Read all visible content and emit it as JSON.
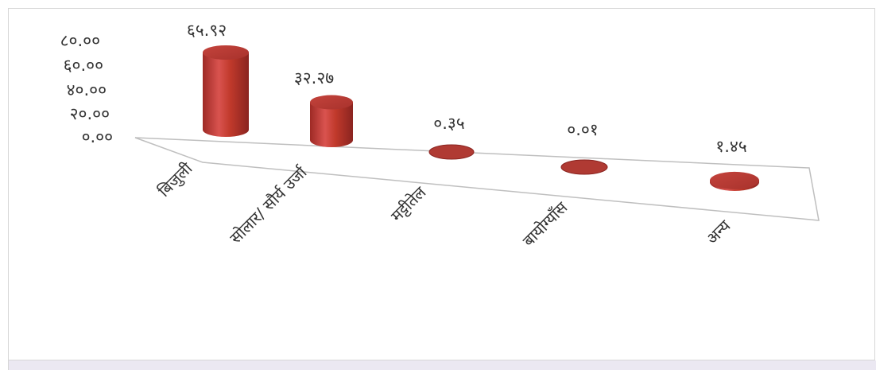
{
  "chart_data": {
    "type": "bar",
    "style": "3d-cylinder",
    "categories": [
      "बिजुली",
      "सोलार/ सौर्य उर्जा",
      "मट्टीतेल",
      "बायोग्याँस",
      "अन्य"
    ],
    "values": [
      65.92,
      32.27,
      0.35,
      0.01,
      1.45
    ],
    "value_labels": [
      "६५.९२",
      "३२.२७",
      "०.३५",
      "०.०१",
      "१.४५"
    ],
    "y_ticks": [
      "०.००",
      "२०.००",
      "४०.००",
      "६०.००",
      "८०.००"
    ],
    "ylim": [
      0,
      80
    ],
    "bar_color": "#c0392b",
    "title": "",
    "xlabel": "",
    "ylabel": ""
  }
}
